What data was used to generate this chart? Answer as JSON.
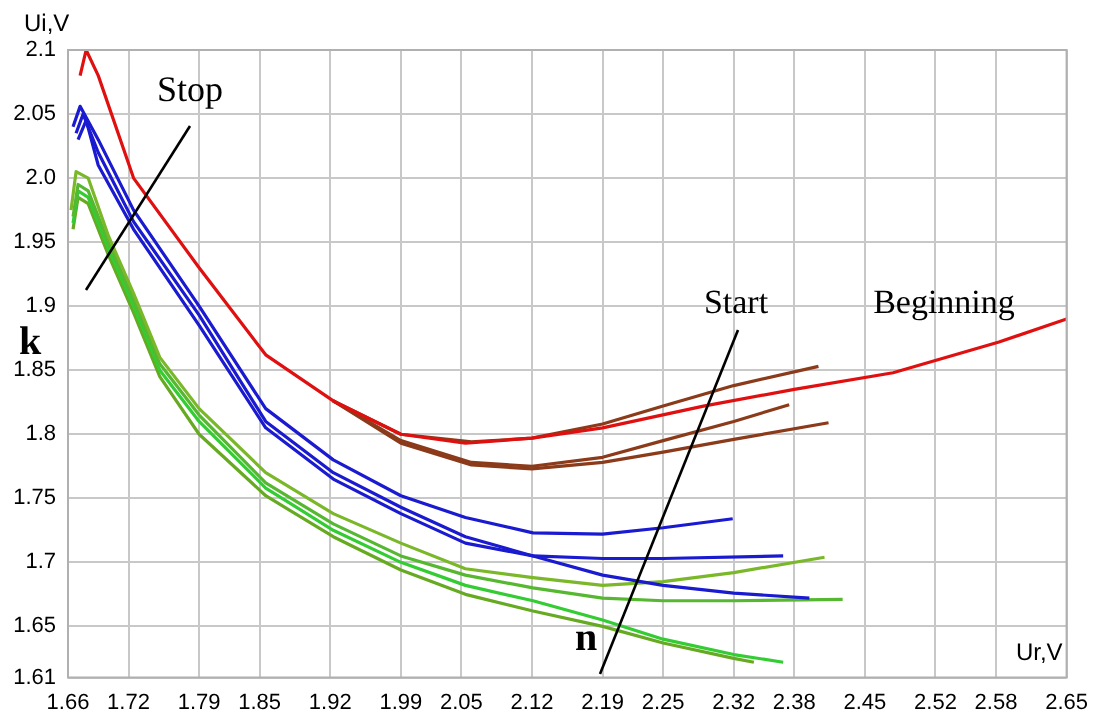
{
  "chart_data": {
    "type": "line",
    "xlabel": "Ur,V",
    "ylabel": "Ui,V",
    "xlim": [
      1.66,
      2.65
    ],
    "ylim": [
      1.61,
      2.1
    ],
    "xticks": [
      1.66,
      1.72,
      1.79,
      1.85,
      1.92,
      1.99,
      2.05,
      2.12,
      2.19,
      2.25,
      2.32,
      2.38,
      2.45,
      2.52,
      2.58,
      2.65
    ],
    "yticks": [
      1.61,
      {
        "value": 1.65,
        "label": "1.65"
      },
      {
        "value": 1.7,
        "label": "1.7"
      },
      {
        "value": 1.75,
        "label": "1.75"
      },
      {
        "value": 1.8,
        "label": "1.8"
      },
      {
        "value": 1.85,
        "label": "1.85"
      },
      {
        "value": 1.9,
        "label": "1.9"
      },
      {
        "value": 1.95,
        "label": "1.95"
      },
      {
        "value": 2.0,
        "label": "2.0"
      },
      {
        "value": 2.05,
        "label": "2.05"
      },
      {
        "value": 2.1,
        "label": "2.1"
      }
    ],
    "grid": true,
    "legend": false,
    "marker": "none",
    "line_style": "solid",
    "annotations": [
      "Stop",
      "k",
      "Start",
      "Beginning",
      "n"
    ],
    "series": [
      {
        "color": "#e01010",
        "x": [
          1.672,
          1.678,
          1.69,
          1.725,
          1.79,
          1.856,
          1.923,
          1.99,
          2.054,
          2.12,
          2.19,
          2.29,
          2.38,
          2.478,
          2.583,
          2.65
        ],
        "values": [
          2.08,
          2.1,
          2.08,
          2.0,
          1.93,
          1.862,
          1.826,
          1.8,
          1.793,
          1.797,
          1.805,
          1.822,
          1.835,
          1.848,
          1.872,
          1.89
        ]
      },
      {
        "color": "#8b3a1a",
        "x": [
          1.923,
          1.99,
          2.06,
          2.12,
          2.19,
          2.25,
          2.32,
          2.404
        ],
        "values": [
          1.826,
          1.8,
          1.794,
          1.797,
          1.808,
          1.822,
          1.838,
          1.853
        ]
      },
      {
        "color": "#8b3a1a",
        "x": [
          1.923,
          1.99,
          2.06,
          2.12,
          2.19,
          2.25,
          2.32,
          2.375
        ],
        "values": [
          1.826,
          1.795,
          1.778,
          1.775,
          1.782,
          1.795,
          1.81,
          1.823
        ]
      },
      {
        "color": "#8b3a1a",
        "x": [
          1.923,
          1.99,
          2.06,
          2.12,
          2.19,
          2.25,
          2.32,
          2.414
        ],
        "values": [
          1.826,
          1.793,
          1.776,
          1.773,
          1.778,
          1.786,
          1.796,
          1.809
        ]
      },
      {
        "color": "#1a1ad0",
        "x": [
          1.665,
          1.672,
          1.69,
          1.725,
          1.79,
          1.856,
          1.923,
          1.99,
          2.054,
          2.121,
          2.19,
          2.25,
          2.319
        ],
        "values": [
          2.04,
          2.056,
          2.03,
          1.975,
          1.9,
          1.82,
          1.78,
          1.752,
          1.735,
          1.723,
          1.722,
          1.727,
          1.734
        ]
      },
      {
        "color": "#1a1ad0",
        "x": [
          1.668,
          1.675,
          1.69,
          1.725,
          1.79,
          1.856,
          1.923,
          1.99,
          2.054,
          2.121,
          2.19,
          2.25,
          2.369
        ],
        "values": [
          2.035,
          2.05,
          2.02,
          1.966,
          1.893,
          1.81,
          1.77,
          1.743,
          1.72,
          1.705,
          1.703,
          1.703,
          1.705
        ]
      },
      {
        "color": "#1a1ad0",
        "x": [
          1.67,
          1.678,
          1.69,
          1.725,
          1.79,
          1.856,
          1.923,
          1.99,
          2.054,
          2.121,
          2.19,
          2.25,
          2.32,
          2.395
        ],
        "values": [
          2.03,
          2.045,
          2.01,
          1.96,
          1.885,
          1.805,
          1.765,
          1.738,
          1.715,
          1.705,
          1.69,
          1.682,
          1.676,
          1.672
        ]
      },
      {
        "color": "#7ab82a",
        "x": [
          1.663,
          1.668,
          1.68,
          1.7,
          1.725,
          1.751,
          1.79,
          1.856,
          1.923,
          1.99,
          2.054,
          2.121,
          2.19,
          2.25,
          2.32,
          2.41
        ],
        "values": [
          1.975,
          2.005,
          2.0,
          1.955,
          1.91,
          1.86,
          1.82,
          1.77,
          1.738,
          1.715,
          1.695,
          1.688,
          1.682,
          1.685,
          1.692,
          1.704
        ]
      },
      {
        "color": "#55b830",
        "x": [
          1.665,
          1.67,
          1.68,
          1.7,
          1.725,
          1.751,
          1.79,
          1.856,
          1.923,
          1.99,
          2.054,
          2.121,
          2.19,
          2.25,
          2.32,
          2.428
        ],
        "values": [
          1.97,
          1.995,
          1.99,
          1.95,
          1.905,
          1.855,
          1.815,
          1.762,
          1.73,
          1.705,
          1.69,
          1.68,
          1.672,
          1.67,
          1.67,
          1.671
        ]
      },
      {
        "color": "#33cc33",
        "x": [
          1.665,
          1.67,
          1.68,
          1.7,
          1.725,
          1.751,
          1.79,
          1.856,
          1.923,
          1.99,
          2.054,
          2.121,
          2.19,
          2.25,
          2.32,
          2.369
        ],
        "values": [
          1.965,
          1.99,
          1.985,
          1.945,
          1.9,
          1.85,
          1.81,
          1.758,
          1.725,
          1.7,
          1.682,
          1.67,
          1.655,
          1.64,
          1.628,
          1.622
        ]
      },
      {
        "color": "#66aa22",
        "x": [
          1.665,
          1.67,
          1.68,
          1.7,
          1.725,
          1.751,
          1.79,
          1.856,
          1.923,
          1.99,
          2.054,
          2.121,
          2.19,
          2.25,
          2.32,
          2.34
        ],
        "values": [
          1.96,
          1.985,
          1.98,
          1.94,
          1.895,
          1.845,
          1.8,
          1.752,
          1.72,
          1.694,
          1.675,
          1.662,
          1.65,
          1.637,
          1.625,
          1.622
        ]
      }
    ]
  }
}
